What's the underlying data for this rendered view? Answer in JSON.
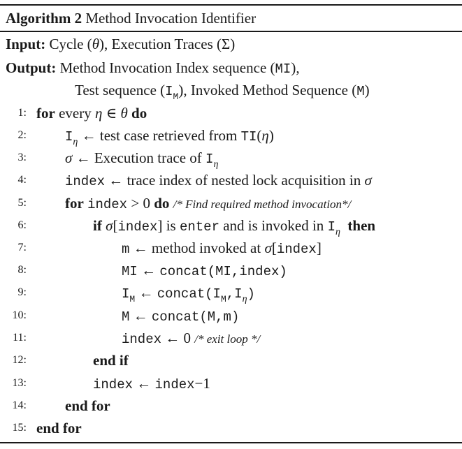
{
  "algorithm": {
    "label": "Algorithm 2",
    "name": "Method Invocation Identifier"
  },
  "input": {
    "key": "Input:",
    "text_a": "Cycle (",
    "theta": "θ",
    "text_b": "), Execution Traces (",
    "sigma_cap": "Σ",
    "text_c": ")"
  },
  "output": {
    "key": "Output:",
    "text_a": "Method Invocation Index sequence (",
    "mi": "MI",
    "text_b": "),",
    "test_a": "Test sequence (",
    "i": "I",
    "m_sub": "M",
    "test_b": "), Invoked Method Sequence (",
    "m": "M",
    "test_c": ")"
  },
  "lines": [
    {
      "n": "1:"
    },
    {
      "n": "2:"
    },
    {
      "n": "3:"
    },
    {
      "n": "4:"
    },
    {
      "n": "5:"
    },
    {
      "n": "6:"
    },
    {
      "n": "7:"
    },
    {
      "n": "8:"
    },
    {
      "n": "9:"
    },
    {
      "n": "10:"
    },
    {
      "n": "11:"
    },
    {
      "n": "12:"
    },
    {
      "n": "13:"
    },
    {
      "n": "14:"
    },
    {
      "n": "15:"
    }
  ],
  "tokens": {
    "kw_for": "for",
    "kw_do": "do",
    "kw_if": "if",
    "kw_then": "then",
    "kw_end_if": "end if",
    "kw_end_for": "end for",
    "every": "every",
    "eta": "η",
    "in": "∈",
    "theta": "θ",
    "sigma": "σ",
    "larr": "←",
    "I": "I",
    "M_sub": "M",
    "TI": "TI",
    "index": "index",
    "m": "m",
    "MI": "MI",
    "M": "M",
    "concat": "concat",
    "enter": "enter",
    "zero": "0",
    "one": "1",
    "gt": ">",
    "minus": "−",
    "l2_text": "test case retrieved from",
    "l3_text": "Execution trace of",
    "l4_text": "trace index of nested lock acquisition in",
    "l5_comment": "/* Find required method invocation*/",
    "l6_is": "is",
    "l6_and": "and is invoked in",
    "l7_text": "method invoked at",
    "l11_comment": "/* exit loop */"
  }
}
